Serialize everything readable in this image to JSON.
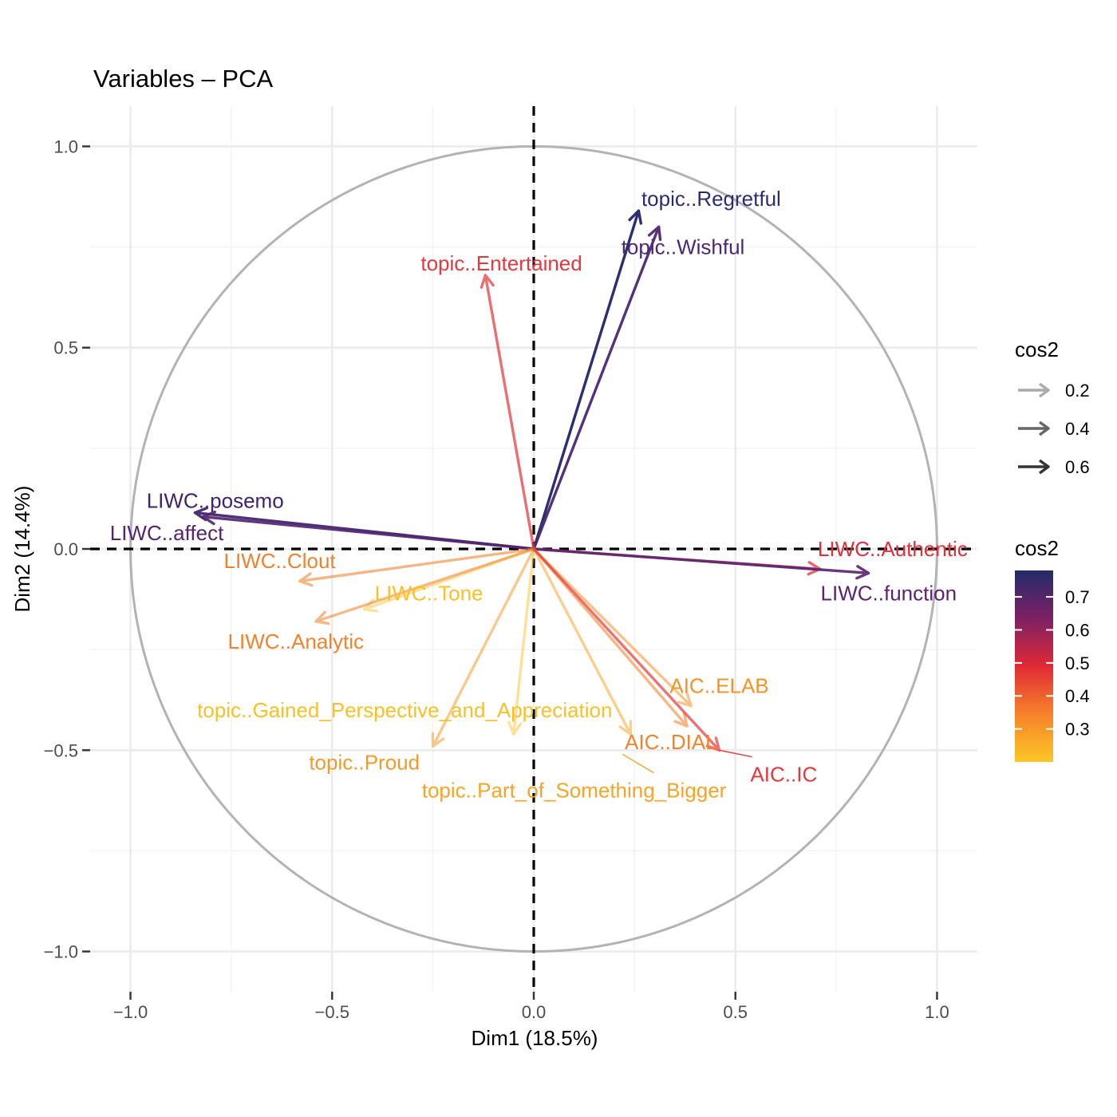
{
  "chart_data": {
    "type": "scatter",
    "subtype": "pca-variable-correlation-circle",
    "title": "Variables – PCA",
    "xlabel": "Dim1 (18.5%)",
    "ylabel": "Dim2 (14.4%)",
    "xlim": [
      -1.1,
      1.1
    ],
    "ylim": [
      -1.1,
      1.1
    ],
    "x_ticks": [
      -1.0,
      -0.5,
      0.0,
      0.5,
      1.0
    ],
    "x_tick_labels": [
      "−1.0",
      "−0.5",
      "0.0",
      "0.5",
      "1.0"
    ],
    "y_ticks": [
      -1.0,
      -0.5,
      0.0,
      0.5,
      1.0
    ],
    "y_tick_labels": [
      "−1.0",
      "−0.5",
      "0.0",
      "0.5",
      "1.0"
    ],
    "grid": true,
    "unit_circle": true,
    "reference_lines": "dashed at x=0 and y=0",
    "legend_position": "right",
    "legend_alpha": {
      "title": "cos2",
      "entries": [
        {
          "label": "0.2",
          "color": "#aaaaaa"
        },
        {
          "label": "0.4",
          "color": "#666666"
        },
        {
          "label": "0.6",
          "color": "#333333"
        }
      ]
    },
    "legend_color": {
      "title": "cos2",
      "labels": [
        "0.7",
        "0.6",
        "0.5",
        "0.4",
        "0.3"
      ],
      "values": [
        0.7,
        0.6,
        0.5,
        0.4,
        0.3
      ],
      "range": [
        0.2,
        0.78
      ],
      "colors": [
        "#fcc726",
        "#f7822b",
        "#e12a35",
        "#7c2064",
        "#232c6b"
      ]
    },
    "variables": [
      {
        "name": "topic..Regretful",
        "x": 0.26,
        "y": 0.84,
        "cos2": 0.77,
        "color": "#2a2d6e"
      },
      {
        "name": "topic..Wishful",
        "x": 0.31,
        "y": 0.8,
        "cos2": 0.73,
        "color": "#4a2872"
      },
      {
        "name": "topic..Entertained",
        "x": -0.12,
        "y": 0.68,
        "cos2": 0.48,
        "color": "#e3393e"
      },
      {
        "name": "LIWC..posemo",
        "x": -0.84,
        "y": 0.09,
        "cos2": 0.71,
        "color": "#3e2270"
      },
      {
        "name": "LIWC..affect",
        "x": -0.82,
        "y": 0.08,
        "cos2": 0.68,
        "color": "#54246f"
      },
      {
        "name": "LIWC..Authentic",
        "x": 0.71,
        "y": -0.05,
        "cos2": 0.51,
        "color": "#e0303a"
      },
      {
        "name": "LIWC..function",
        "x": 0.83,
        "y": -0.06,
        "cos2": 0.69,
        "color": "#5a2370"
      },
      {
        "name": "LIWC..Clout",
        "x": -0.58,
        "y": -0.08,
        "cos2": 0.34,
        "color": "#f0822d"
      },
      {
        "name": "LIWC..Tone",
        "x": -0.42,
        "y": -0.15,
        "cos2": 0.2,
        "color": "#fcc026"
      },
      {
        "name": "LIWC..Analytic",
        "x": -0.54,
        "y": -0.18,
        "cos2": 0.32,
        "color": "#f2822c"
      },
      {
        "name": "topic..Gained_Perspective_and_Appreciation",
        "x": -0.05,
        "y": -0.46,
        "cos2": 0.22,
        "color": "#fbc027"
      },
      {
        "name": "topic..Proud",
        "x": -0.25,
        "y": -0.49,
        "cos2": 0.3,
        "color": "#f49a2a"
      },
      {
        "name": "topic..Part_of_Something_Bigger",
        "x": 0.24,
        "y": -0.46,
        "cos2": 0.27,
        "color": "#f7a428"
      },
      {
        "name": "AIC..ELAB",
        "x": 0.39,
        "y": -0.39,
        "cos2": 0.3,
        "color": "#f49228"
      },
      {
        "name": "AIC..DIAL",
        "x": 0.38,
        "y": -0.44,
        "cos2": 0.34,
        "color": "#f3832b"
      },
      {
        "name": "AIC..IC",
        "x": 0.46,
        "y": -0.5,
        "cos2": 0.46,
        "color": "#e4383b"
      }
    ],
    "labels": [
      {
        "name": "topic..Regretful",
        "x": 0.44,
        "y": 0.87
      },
      {
        "name": "topic..Wishful",
        "x": 0.37,
        "y": 0.75
      },
      {
        "name": "topic..Entertained",
        "x": -0.08,
        "y": 0.71
      },
      {
        "name": "LIWC..posemo",
        "x": -0.79,
        "y": 0.12
      },
      {
        "name": "LIWC..affect",
        "x": -0.91,
        "y": 0.04
      },
      {
        "name": "LIWC..Authentic",
        "x": 0.89,
        "y": 0.0
      },
      {
        "name": "LIWC..function",
        "x": 0.88,
        "y": -0.11
      },
      {
        "name": "LIWC..Clout",
        "x": -0.63,
        "y": -0.03
      },
      {
        "name": "LIWC..Tone",
        "x": -0.26,
        "y": -0.11
      },
      {
        "name": "LIWC..Analytic",
        "x": -0.59,
        "y": -0.23
      },
      {
        "name": "topic..Gained_Perspective_and_Appreciation",
        "x": -0.32,
        "y": -0.4
      },
      {
        "name": "topic..Proud",
        "x": -0.42,
        "y": -0.53
      },
      {
        "name": "topic..Part_of_Something_Bigger",
        "x": 0.1,
        "y": -0.6,
        "leader_to": [
          0.22,
          -0.51
        ]
      },
      {
        "name": "AIC..ELAB",
        "x": 0.46,
        "y": -0.34
      },
      {
        "name": "AIC..DIAL",
        "x": 0.34,
        "y": -0.48
      },
      {
        "name": "AIC..IC",
        "x": 0.62,
        "y": -0.56,
        "leader_to": [
          0.46,
          -0.5
        ]
      }
    ]
  }
}
